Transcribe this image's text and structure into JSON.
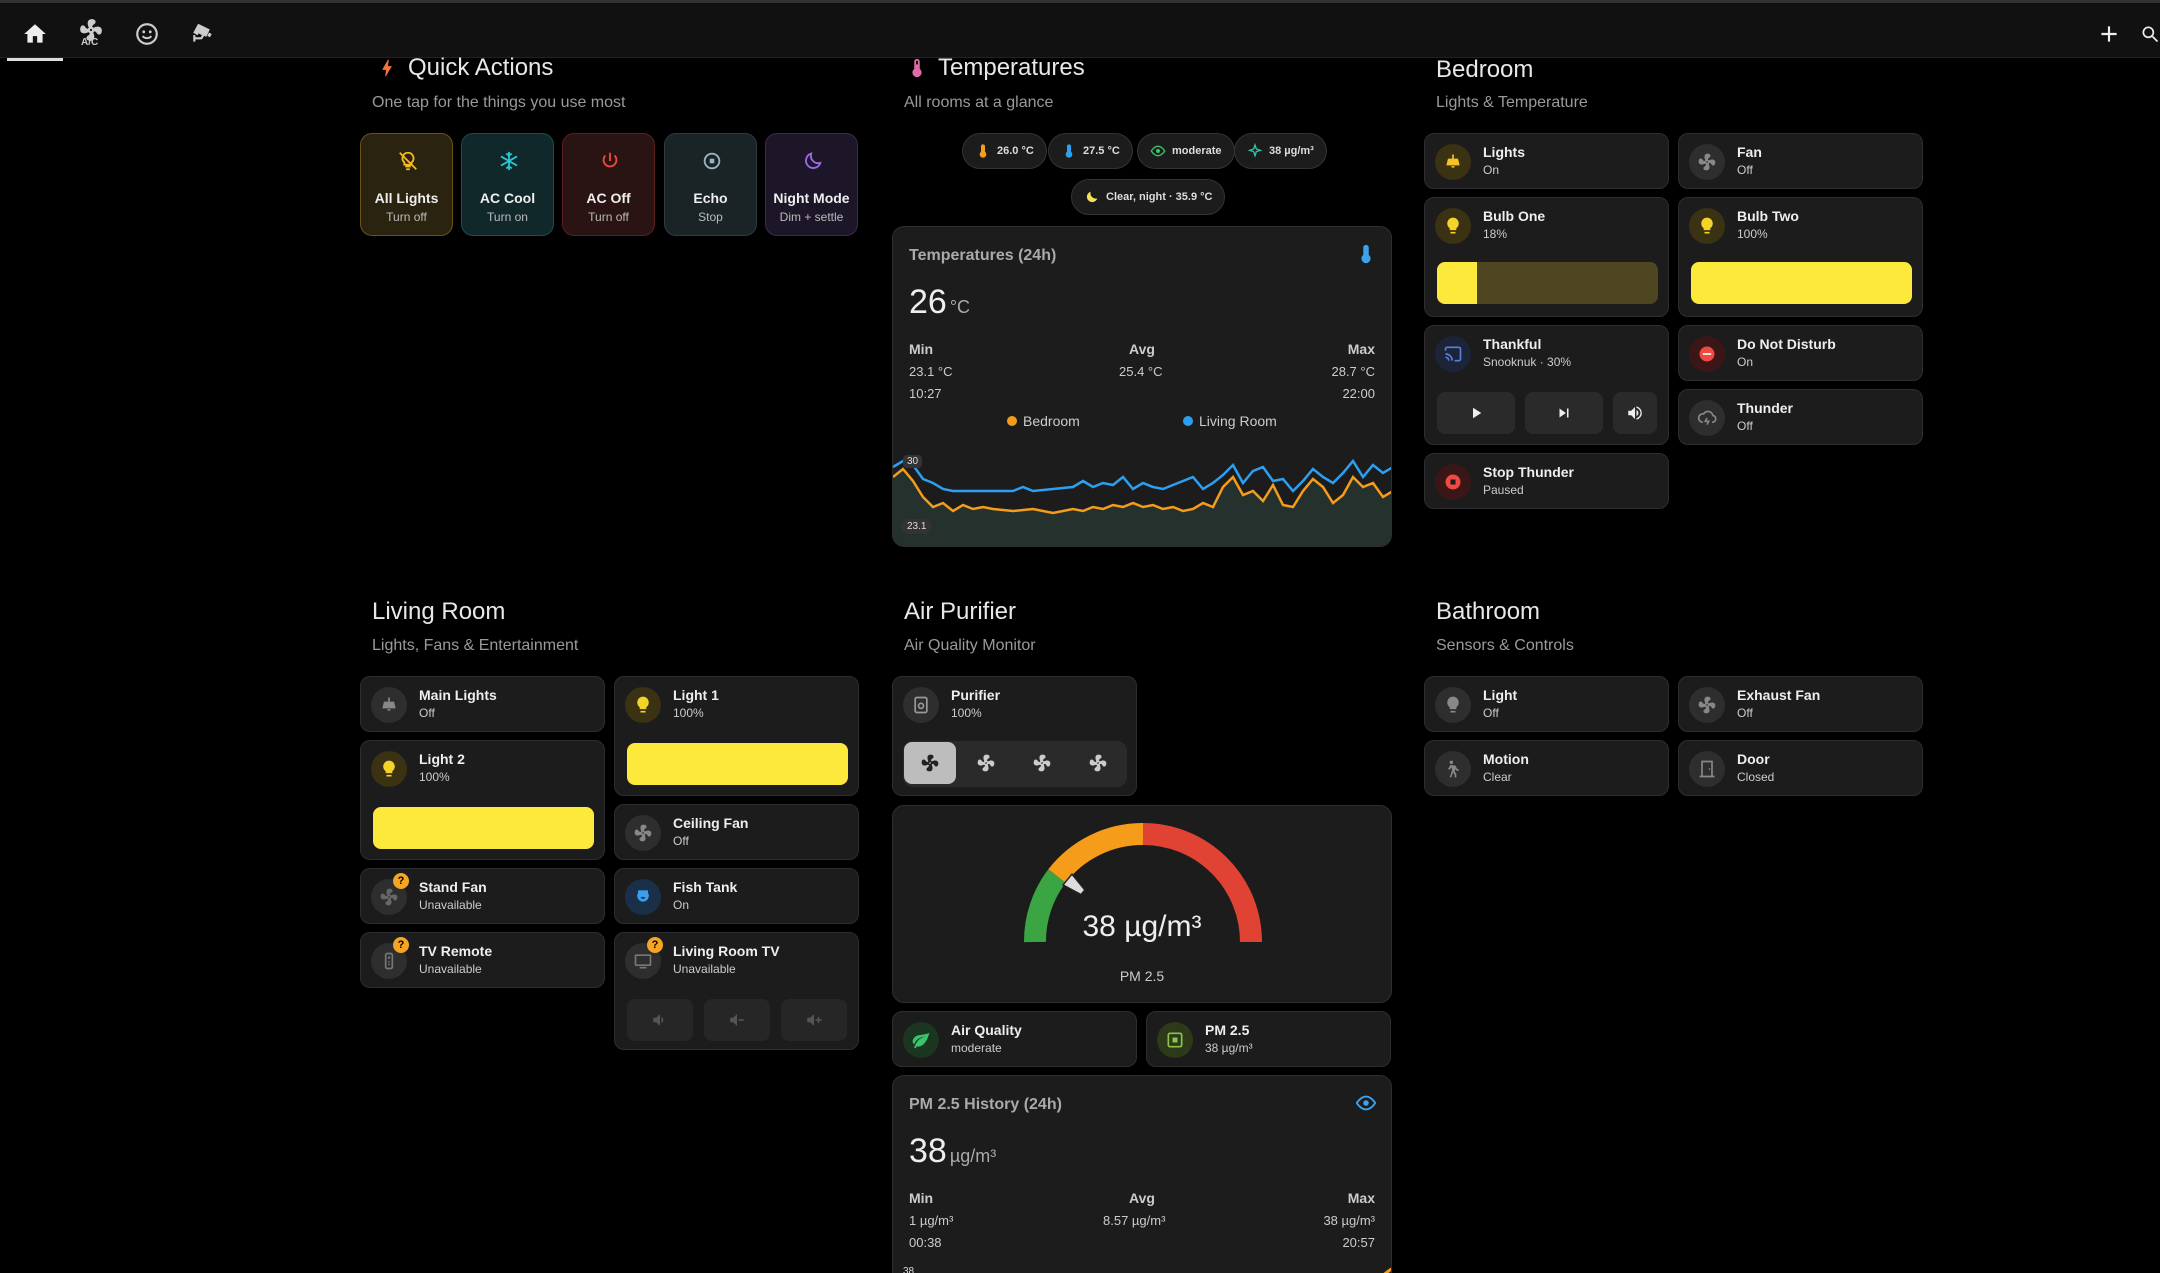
{
  "topbar": {
    "ac_label": "A/C"
  },
  "quick_actions": {
    "title": "Quick Actions",
    "subtitle": "One tap for the things you use most",
    "items": [
      {
        "name": "All Lights",
        "state": "Turn off"
      },
      {
        "name": "AC Cool",
        "state": "Turn on"
      },
      {
        "name": "AC Off",
        "state": "Turn off"
      },
      {
        "name": "Echo",
        "state": "Stop"
      },
      {
        "name": "Night Mode",
        "state": "Dim + settle"
      }
    ]
  },
  "temperatures": {
    "title": "Temperatures",
    "subtitle": "All rooms at a glance",
    "chips": [
      "26.0 °C",
      "27.5 °C",
      "moderate",
      "38 µg/m³",
      "Clear, night · 35.9 °C"
    ],
    "graph": {
      "title": "Temperatures (24h)",
      "value": "26",
      "unit": "°C",
      "min_label": "Min",
      "avg_label": "Avg",
      "max_label": "Max",
      "min": "23.1 °C",
      "min_time": "10:27",
      "avg": "25.4 °C",
      "max": "28.7 °C",
      "max_time": "22:00",
      "legend": [
        "Bedroom",
        "Living Room"
      ],
      "axis_top": "30",
      "axis_bottom": "23.1"
    }
  },
  "bedroom": {
    "title": "Bedroom",
    "subtitle": "Lights & Temperature",
    "lights": {
      "name": "Lights",
      "state": "On"
    },
    "fan": {
      "name": "Fan",
      "state": "Off"
    },
    "bulb_one": {
      "name": "Bulb One",
      "state": "18%",
      "level": 0.18
    },
    "bulb_two": {
      "name": "Bulb Two",
      "state": "100%",
      "level": 1.0
    },
    "media": {
      "name": "Thankful",
      "state": "Snooknuk · 30%"
    },
    "dnd": {
      "name": "Do Not Disturb",
      "state": "On"
    },
    "thunder": {
      "name": "Thunder",
      "state": "Off"
    },
    "stop_thunder": {
      "name": "Stop Thunder",
      "state": "Paused"
    }
  },
  "living_room": {
    "title": "Living Room",
    "subtitle": "Lights, Fans & Entertainment",
    "main_lights": {
      "name": "Main Lights",
      "state": "Off"
    },
    "light1": {
      "name": "Light 1",
      "state": "100%",
      "level": 1.0
    },
    "light2": {
      "name": "Light 2",
      "state": "100%",
      "level": 1.0
    },
    "ceiling_fan": {
      "name": "Ceiling Fan",
      "state": "Off"
    },
    "stand_fan": {
      "name": "Stand Fan",
      "state": "Unavailable"
    },
    "fish_tank": {
      "name": "Fish Tank",
      "state": "On"
    },
    "tv_remote": {
      "name": "TV Remote",
      "state": "Unavailable"
    },
    "tv": {
      "name": "Living Room TV",
      "state": "Unavailable"
    },
    "badge": "?"
  },
  "air_purifier": {
    "title": "Air Purifier",
    "subtitle": "Air Quality Monitor",
    "purifier": {
      "name": "Purifier",
      "state": "100%"
    },
    "gauge": {
      "value": "38 µg/m³",
      "label": "PM 2.5",
      "level": 0.22
    },
    "air_quality": {
      "name": "Air Quality",
      "state": "moderate"
    },
    "pm25": {
      "name": "PM 2.5",
      "state": "38 µg/m³"
    },
    "history": {
      "title": "PM 2.5 History (24h)",
      "value": "38",
      "unit": "µg/m³",
      "min_label": "Min",
      "avg_label": "Avg",
      "max_label": "Max",
      "min": "1 µg/m³",
      "min_time": "00:38",
      "avg": "8.57 µg/m³",
      "max": "38 µg/m³",
      "max_time": "20:57",
      "axis_top": "38"
    }
  },
  "bathroom": {
    "title": "Bathroom",
    "subtitle": "Sensors & Controls",
    "light": {
      "name": "Light",
      "state": "Off"
    },
    "exhaust": {
      "name": "Exhaust Fan",
      "state": "Off"
    },
    "motion": {
      "name": "Motion",
      "state": "Clear"
    },
    "door": {
      "name": "Door",
      "state": "Closed"
    }
  }
}
